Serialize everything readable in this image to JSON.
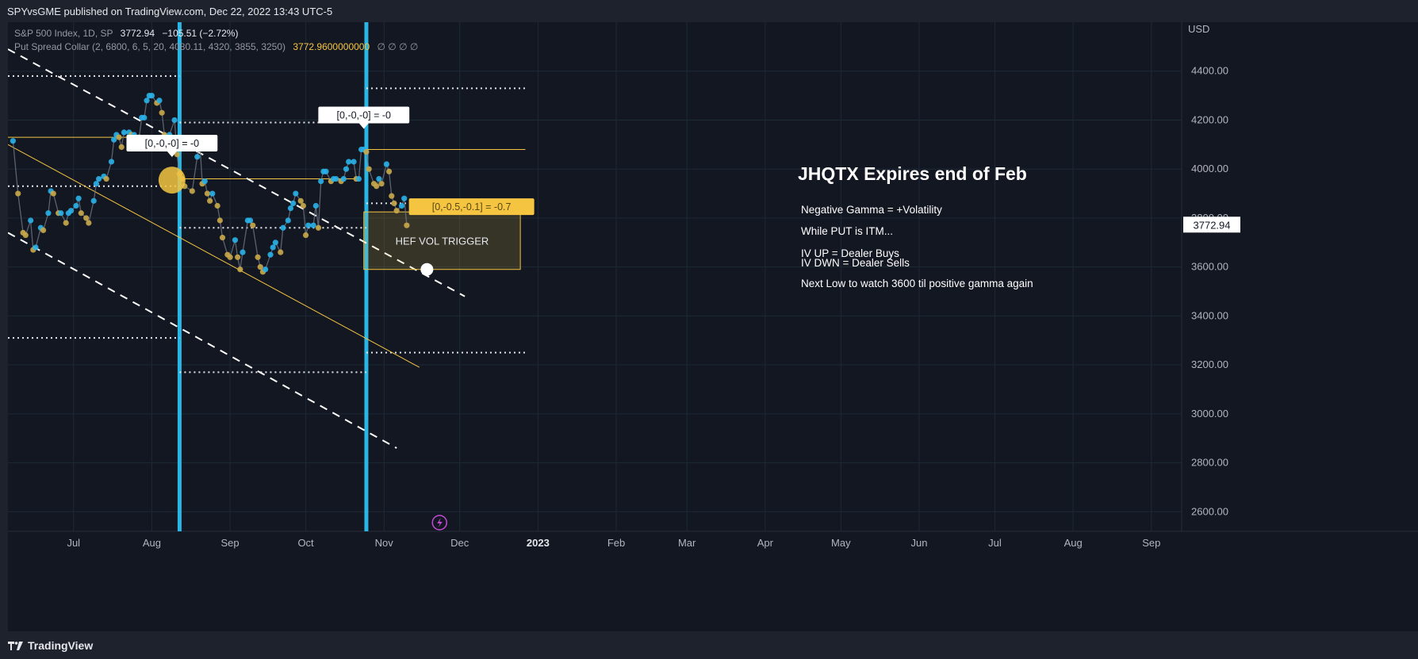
{
  "header": {
    "published": "SPYvsGME published on TradingView.com, Dec 22, 2022 13:43 UTC-5"
  },
  "legend": {
    "symbol": "S&P 500 Index, 1D, SP",
    "last": "3772.94",
    "change": "−105.51 (−2.72%)",
    "indicator": "Put Spread Collar (2, 6800, 6, 5, 20, 4080.11, 4320, 3855, 3250)",
    "indicator_value": "3772.9600000000",
    "na_values": "∅ ∅ ∅ ∅"
  },
  "footer": {
    "brand": "TradingView"
  },
  "colors": {
    "background": "#131722",
    "price_up": "#2ab1e8",
    "price_down": "#c9a94a",
    "yellow": "#f5c542",
    "cyan_line": "#29b6e5",
    "white": "#ffffff"
  },
  "chart_data": {
    "type": "line",
    "currency": "USD",
    "last_price_label": "3772.94",
    "ylim": [
      2520,
      4600
    ],
    "y_ticks": [
      "4400.00",
      "4200.00",
      "4000.00",
      "3800.00",
      "3600.00",
      "3400.00",
      "3200.00",
      "3000.00",
      "2800.00",
      "2600.00"
    ],
    "x_ticks": [
      "Jul",
      "Aug",
      "Sep",
      "Oct",
      "Nov",
      "Dec",
      "2023",
      "Feb",
      "Mar",
      "Apr",
      "May",
      "Jun",
      "Jul",
      "Aug",
      "Sep"
    ],
    "x_tick_days": [
      30,
      61,
      92,
      122,
      153,
      183,
      214,
      245,
      273,
      304,
      334,
      365,
      395,
      426,
      457
    ],
    "x_range_days": [
      4,
      469
    ],
    "series": [
      {
        "values": [
          [
            6,
            4115
          ],
          [
            8,
            3900
          ],
          [
            10,
            3740
          ],
          [
            11,
            3730
          ],
          [
            13,
            3790
          ],
          [
            14,
            3670
          ],
          [
            15,
            3680
          ],
          [
            17,
            3760
          ],
          [
            18,
            3750
          ],
          [
            20,
            3820
          ],
          [
            21,
            3910
          ],
          [
            22,
            3900
          ],
          [
            24,
            3820
          ],
          [
            25,
            3820
          ],
          [
            27,
            3780
          ],
          [
            28,
            3820
          ],
          [
            29,
            3830
          ],
          [
            31,
            3850
          ],
          [
            32,
            3880
          ],
          [
            33,
            3820
          ],
          [
            35,
            3800
          ],
          [
            36,
            3780
          ],
          [
            38,
            3870
          ],
          [
            39,
            3940
          ],
          [
            40,
            3960
          ],
          [
            42,
            3970
          ],
          [
            43,
            3960
          ],
          [
            45,
            4030
          ],
          [
            46,
            4120
          ],
          [
            47,
            4140
          ],
          [
            48,
            4130
          ],
          [
            49,
            4090
          ],
          [
            50,
            4150
          ],
          [
            52,
            4150
          ],
          [
            53,
            4140
          ],
          [
            54,
            4140
          ],
          [
            56,
            4130
          ],
          [
            57,
            4210
          ],
          [
            58,
            4210
          ],
          [
            59,
            4280
          ],
          [
            60,
            4300
          ],
          [
            61,
            4300
          ],
          [
            63,
            4270
          ],
          [
            64,
            4280
          ],
          [
            65,
            4230
          ],
          [
            66,
            4140
          ],
          [
            67,
            4130
          ],
          [
            68,
            4140
          ],
          [
            70,
            4200
          ],
          [
            71,
            4060
          ],
          [
            72,
            3980
          ],
          [
            73,
            3960
          ],
          [
            74,
            3930
          ],
          [
            77,
            3910
          ],
          [
            79,
            4050
          ],
          [
            80,
            4110
          ],
          [
            81,
            3940
          ],
          [
            82,
            3950
          ],
          [
            83,
            3900
          ],
          [
            84,
            3870
          ],
          [
            85,
            3900
          ],
          [
            87,
            3850
          ],
          [
            88,
            3790
          ],
          [
            89,
            3720
          ],
          [
            91,
            3650
          ],
          [
            92,
            3640
          ],
          [
            94,
            3710
          ],
          [
            95,
            3640
          ],
          [
            96,
            3590
          ],
          [
            97,
            3660
          ],
          [
            99,
            3790
          ],
          [
            100,
            3790
          ],
          [
            101,
            3770
          ],
          [
            103,
            3640
          ],
          [
            104,
            3600
          ],
          [
            105,
            3580
          ],
          [
            106,
            3590
          ],
          [
            108,
            3650
          ],
          [
            109,
            3680
          ],
          [
            110,
            3700
          ],
          [
            112,
            3660
          ],
          [
            113,
            3760
          ],
          [
            115,
            3790
          ],
          [
            116,
            3840
          ],
          [
            117,
            3860
          ],
          [
            118,
            3900
          ],
          [
            120,
            3870
          ],
          [
            121,
            3850
          ],
          [
            122,
            3730
          ],
          [
            123,
            3770
          ],
          [
            125,
            3770
          ],
          [
            126,
            3850
          ],
          [
            127,
            3760
          ],
          [
            128,
            3950
          ],
          [
            129,
            3990
          ],
          [
            130,
            3990
          ],
          [
            132,
            3950
          ],
          [
            133,
            3960
          ],
          [
            134,
            3960
          ],
          [
            136,
            3950
          ],
          [
            137,
            3960
          ],
          [
            138,
            4000
          ],
          [
            139,
            4030
          ],
          [
            141,
            4030
          ],
          [
            142,
            3960
          ],
          [
            143,
            3960
          ],
          [
            144,
            4080
          ],
          [
            145,
            4080
          ],
          [
            146,
            4070
          ],
          [
            147,
            4000
          ],
          [
            149,
            3940
          ],
          [
            150,
            3930
          ],
          [
            151,
            3960
          ],
          [
            152,
            3940
          ],
          [
            154,
            4020
          ],
          [
            155,
            3990
          ],
          [
            156,
            3890
          ],
          [
            157,
            3860
          ],
          [
            158,
            3830
          ],
          [
            160,
            3850
          ],
          [
            161,
            3880
          ],
          [
            162,
            3770
          ]
        ]
      }
    ],
    "annotations": [
      {
        "type": "text",
        "text": "JHQTX Expires end of Feb",
        "size": "large"
      },
      {
        "type": "text",
        "text": "Negative Gamma = +Volatility"
      },
      {
        "type": "text",
        "text": "While PUT is ITM..."
      },
      {
        "type": "text",
        "text": "IV UP = Dealer Buys"
      },
      {
        "type": "text",
        "text": "IV DWN = Dealer Sells"
      },
      {
        "type": "text",
        "text": "Next Low to watch 3600 til positive gamma again"
      },
      {
        "type": "box",
        "text": "HEF VOL TRIGGER",
        "x": [
          145,
          207
        ],
        "y": [
          3590,
          3825
        ]
      },
      {
        "type": "label",
        "text": "[0,-0,-0] = -0",
        "x": 69,
        "y": 4020
      },
      {
        "type": "label",
        "text": "[0,-0,-0] = -0",
        "x": 145,
        "y": 4135
      },
      {
        "type": "label",
        "text": "[0,-0.5,-0.1] = -0.7",
        "x": 166,
        "y": 3835
      }
    ],
    "vertical_lines_days": [
      72,
      146
    ],
    "horizontal_levels": [
      {
        "y": 4130,
        "x": [
          4,
          68
        ],
        "style": "solid-yellow"
      },
      {
        "y": 3960,
        "x": [
          72,
          142
        ],
        "style": "solid-yellow"
      },
      {
        "y": 4080,
        "x": [
          146,
          209
        ],
        "style": "solid-yellow"
      },
      {
        "y": 4380,
        "x": [
          4,
          72
        ],
        "style": "dotted"
      },
      {
        "y": 3930,
        "x": [
          4,
          72
        ],
        "style": "dotted"
      },
      {
        "y": 3310,
        "x": [
          4,
          72
        ],
        "style": "dotted"
      },
      {
        "y": 4190,
        "x": [
          72,
          146
        ],
        "style": "dotted"
      },
      {
        "y": 3760,
        "x": [
          72,
          146
        ],
        "style": "dotted"
      },
      {
        "y": 3170,
        "x": [
          72,
          146
        ],
        "style": "dotted"
      },
      {
        "y": 4330,
        "x": [
          146,
          209
        ],
        "style": "dotted"
      },
      {
        "y": 3860,
        "x": [
          146,
          209
        ],
        "style": "dotted"
      },
      {
        "y": 3250,
        "x": [
          146,
          209
        ],
        "style": "dotted"
      }
    ],
    "trend_lines": [
      {
        "from": [
          4,
          4100
        ],
        "to": [
          167,
          3190
        ],
        "style": "solid-yellow"
      },
      {
        "from": [
          4,
          4490
        ],
        "to": [
          185,
          3480
        ],
        "style": "dashed-white"
      },
      {
        "from": [
          4,
          3740
        ],
        "to": [
          158,
          2860
        ],
        "style": "dashed-white"
      }
    ],
    "markers": [
      {
        "x": 69,
        "y": 3955,
        "type": "big-yellow"
      },
      {
        "x": 170,
        "y": 3590,
        "type": "white"
      }
    ]
  }
}
